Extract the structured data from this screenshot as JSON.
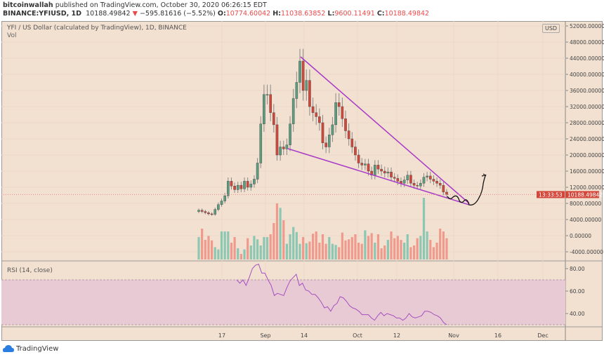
{
  "header": {
    "author": "bitcoinwallah",
    "published": "published on TradingView.com, October 30, 2020 06:26:15 EDT",
    "symbol": "BINANCE:YFIUSD, 1D",
    "last": "10188.49842",
    "change": "−595.81616 (−5.52%)",
    "o_label": "O:",
    "o": "10774.60042",
    "h_label": "H:",
    "h": "11038.63852",
    "l_label": "L:",
    "l": "9600.11491",
    "c_label": "C:",
    "c": "10188.49842"
  },
  "chart": {
    "title": "YFI / US Dollar (calculated by TradingView), 1D, BINANCE",
    "vol_label": "Vol",
    "currency": "USD",
    "price_ticks": [
      "52000.00000",
      "48000.00000",
      "44000.00000",
      "40000.00000",
      "36000.00000",
      "32000.00000",
      "28000.00000",
      "24000.00000",
      "20000.00000",
      "16000.00000",
      "12000.00000",
      "8000.00000",
      "4000.00000",
      "0.00000",
      "-4000.00000"
    ],
    "price_tick_values": [
      52000,
      48000,
      44000,
      40000,
      36000,
      32000,
      28000,
      24000,
      20000,
      16000,
      12000,
      8000,
      4000,
      0,
      -4000
    ],
    "last_price_badge": "10188.49842",
    "countdown_badge": "13:33:53",
    "time_ticks": [
      "17",
      "Sep",
      "14",
      "Oct",
      "12",
      "Nov",
      "16",
      "Dec"
    ]
  },
  "rsi": {
    "title": "RSI (14, close)",
    "ticks": [
      "80.00",
      "60.00",
      "40.00"
    ],
    "tick_values": [
      80,
      60,
      40
    ],
    "band": [
      30,
      70
    ]
  },
  "footer": {
    "brand": "TradingView"
  },
  "colors": {
    "up": "#5b9d7e",
    "down": "#d2473a",
    "vol_up": "#8cc7b4",
    "vol_down": "#f09a8d",
    "trend": "#a93ac8",
    "rsi": "#a54fc0",
    "bg": "#f2e1d1"
  },
  "chart_data": {
    "type": "candlestick",
    "unit": "USD (thousands)",
    "closes": [
      6.3,
      6.0,
      5.7,
      5.4,
      5.3,
      6.5,
      7.7,
      8.6,
      9.9,
      13.5,
      12.3,
      11.4,
      12.5,
      11.6,
      13.5,
      12.0,
      12.8,
      14.0,
      18.0,
      27.7,
      35.0,
      35.0,
      30.5,
      27.5,
      20.0,
      22.0,
      21.5,
      22.5,
      27.7,
      34.0,
      38.0,
      43.3,
      36.0,
      38.5,
      32.0,
      30.5,
      29.5,
      28.0,
      23.0,
      22.0,
      25.0,
      27.5,
      33.0,
      32.0,
      29.0,
      26.0,
      24.0,
      22.0,
      20.0,
      18.0,
      17.5,
      17.8,
      16.0,
      15.0,
      17.5,
      16.5,
      16.0,
      15.5,
      15.8,
      14.5,
      14.2,
      13.5,
      13.0,
      13.8,
      15.0,
      13.0,
      12.5,
      12.3,
      13.0,
      14.5,
      14.8,
      14.0,
      13.5,
      13.0,
      12.5,
      10.8,
      10.2
    ],
    "volume_rel": [
      40,
      55,
      35,
      42,
      34,
      22,
      18,
      50,
      50,
      50,
      30,
      40,
      20,
      10,
      18,
      38,
      25,
      42,
      36,
      25,
      40,
      40,
      45,
      65,
      100,
      92,
      70,
      28,
      45,
      58,
      49,
      28,
      40,
      29,
      32,
      46,
      50,
      30,
      45,
      28,
      40,
      28,
      26,
      22,
      48,
      34,
      36,
      40,
      45,
      30,
      28,
      52,
      42,
      47,
      30,
      45,
      20,
      25,
      35,
      50,
      38,
      42,
      35,
      30,
      45,
      22,
      25,
      38,
      42,
      110,
      50,
      35,
      22,
      30,
      55,
      50,
      38
    ],
    "rsi": [
      70,
      67,
      70,
      65,
      72,
      80,
      83,
      84,
      76,
      76,
      70,
      65,
      56,
      58,
      57,
      56,
      63,
      69,
      72,
      75,
      65,
      67,
      61,
      60,
      57,
      57,
      54,
      50,
      45,
      46,
      42,
      47,
      49,
      55,
      54,
      51,
      47,
      45,
      44,
      42,
      39,
      39,
      39,
      36,
      34,
      38,
      41,
      38,
      40,
      39,
      38,
      36,
      36,
      34,
      36,
      40,
      37,
      36,
      37,
      38,
      42,
      42,
      41,
      39,
      38,
      36,
      32,
      30
    ]
  }
}
